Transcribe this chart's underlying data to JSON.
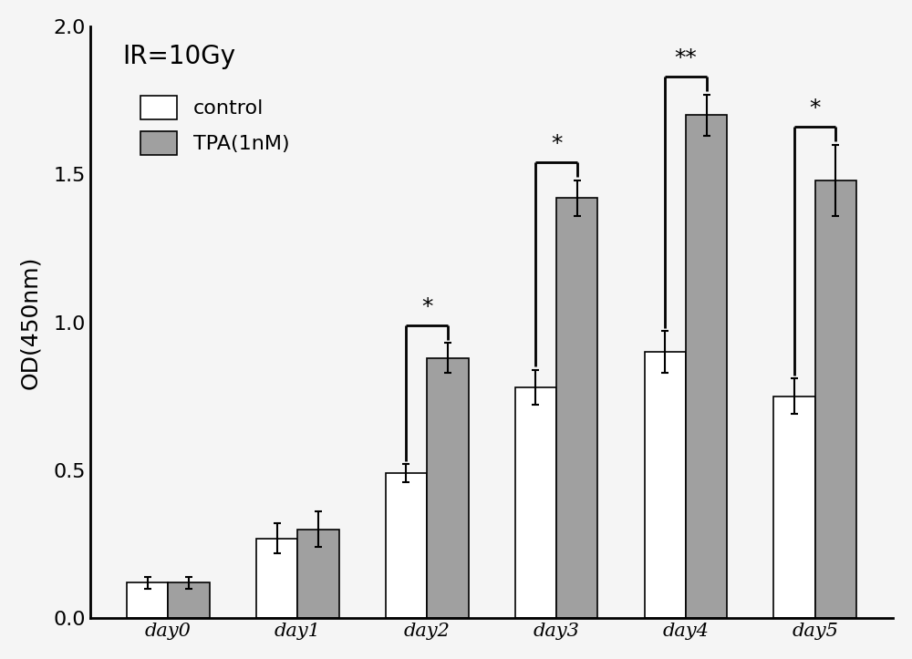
{
  "categories": [
    "day0",
    "day1",
    "day2",
    "day3",
    "day4",
    "day5"
  ],
  "control_values": [
    0.12,
    0.27,
    0.49,
    0.78,
    0.9,
    0.75
  ],
  "control_errors": [
    0.02,
    0.05,
    0.03,
    0.06,
    0.07,
    0.06
  ],
  "tpa_values": [
    0.12,
    0.3,
    0.88,
    1.42,
    1.7,
    1.48
  ],
  "tpa_errors": [
    0.02,
    0.06,
    0.05,
    0.06,
    0.07,
    0.12
  ],
  "control_color": "#ffffff",
  "control_edgecolor": "#000000",
  "tpa_color": "#a0a0a0",
  "tpa_edgecolor": "#000000",
  "bar_width": 0.32,
  "ylabel": "OD(450nm)",
  "ylim": [
    0.0,
    2.0
  ],
  "yticks": [
    0.0,
    0.5,
    1.0,
    1.5,
    2.0
  ],
  "title_text": "IR=10Gy",
  "legend_labels": [
    "control",
    "TPA(1nM)"
  ],
  "significance": [
    {
      "day_idx": 2,
      "label": "*"
    },
    {
      "day_idx": 3,
      "label": "*"
    },
    {
      "day_idx": 4,
      "label": "**"
    },
    {
      "day_idx": 5,
      "label": "*"
    }
  ],
  "background_color": "#f5f5f5",
  "figure_width": 10.0,
  "figure_height": 7.23
}
